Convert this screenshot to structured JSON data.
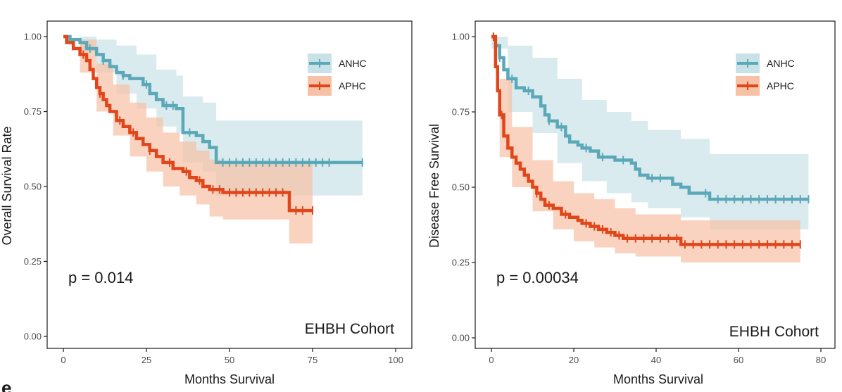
{
  "colors": {
    "anhc": "#5ba8b8",
    "aphc": "#e0461a",
    "anhc_band": "#c9e2e7",
    "aphc_band": "#f6c1a5"
  },
  "panel_letter": "e",
  "chart_data": [
    {
      "type": "line",
      "subtype": "kaplan-meier",
      "title": "",
      "xlabel": "Months Survival",
      "ylabel": "Overall Survival Rate",
      "xlim": [
        0,
        100
      ],
      "ylim": [
        0,
        1
      ],
      "xticks": [
        0,
        25,
        50,
        75,
        100
      ],
      "yticks": [
        0,
        0.25,
        0.5,
        0.75,
        1.0
      ],
      "xtick_labels": [
        "0",
        "25",
        "50",
        "75",
        "100"
      ],
      "ytick_labels": [
        "0.00",
        "0.25",
        "0.50",
        "0.75",
        "1.00"
      ],
      "grid": false,
      "legend_position": "top-right",
      "pvalue": "p = 0.014",
      "cohort_label": "EHBH Cohort",
      "series": [
        {
          "name": "ANHC",
          "color_key": "anhc",
          "steps": [
            [
              0,
              1.0
            ],
            [
              2,
              0.99
            ],
            [
              5,
              0.98
            ],
            [
              7,
              0.96
            ],
            [
              10,
              0.94
            ],
            [
              12,
              0.92
            ],
            [
              14,
              0.9
            ],
            [
              16,
              0.88
            ],
            [
              18,
              0.87
            ],
            [
              20,
              0.86
            ],
            [
              24,
              0.84
            ],
            [
              26,
              0.81
            ],
            [
              28,
              0.79
            ],
            [
              30,
              0.77
            ],
            [
              34,
              0.76
            ],
            [
              36,
              0.68
            ],
            [
              40,
              0.67
            ],
            [
              42,
              0.65
            ],
            [
              44,
              0.63
            ],
            [
              46,
              0.58
            ],
            [
              90,
              0.58
            ]
          ],
          "upper": [
            [
              0,
              1.0
            ],
            [
              5,
              1.0
            ],
            [
              10,
              0.99
            ],
            [
              16,
              0.97
            ],
            [
              22,
              0.94
            ],
            [
              28,
              0.89
            ],
            [
              34,
              0.87
            ],
            [
              36,
              0.8
            ],
            [
              42,
              0.78
            ],
            [
              46,
              0.72
            ],
            [
              90,
              0.72
            ]
          ],
          "lower": [
            [
              0,
              1.0
            ],
            [
              5,
              0.95
            ],
            [
              10,
              0.88
            ],
            [
              16,
              0.81
            ],
            [
              22,
              0.76
            ],
            [
              28,
              0.7
            ],
            [
              34,
              0.68
            ],
            [
              36,
              0.58
            ],
            [
              42,
              0.55
            ],
            [
              46,
              0.47
            ],
            [
              90,
              0.47
            ]
          ],
          "censor_x": [
            8,
            12,
            18,
            25,
            31,
            33,
            38,
            48,
            50,
            52,
            54,
            56,
            58,
            60,
            62,
            64,
            66,
            68,
            70,
            72,
            74,
            76,
            78,
            80,
            90
          ]
        },
        {
          "name": "APHC",
          "color_key": "aphc",
          "steps": [
            [
              0,
              1.0
            ],
            [
              1,
              0.98
            ],
            [
              3,
              0.96
            ],
            [
              5,
              0.94
            ],
            [
              7,
              0.92
            ],
            [
              8,
              0.89
            ],
            [
              9,
              0.86
            ],
            [
              10,
              0.83
            ],
            [
              11,
              0.81
            ],
            [
              12,
              0.79
            ],
            [
              13,
              0.77
            ],
            [
              14,
              0.75
            ],
            [
              16,
              0.72
            ],
            [
              18,
              0.7
            ],
            [
              20,
              0.68
            ],
            [
              22,
              0.66
            ],
            [
              24,
              0.64
            ],
            [
              26,
              0.62
            ],
            [
              28,
              0.6
            ],
            [
              30,
              0.58
            ],
            [
              33,
              0.56
            ],
            [
              36,
              0.55
            ],
            [
              38,
              0.53
            ],
            [
              40,
              0.52
            ],
            [
              42,
              0.5
            ],
            [
              44,
              0.49
            ],
            [
              48,
              0.48
            ],
            [
              68,
              0.48
            ],
            [
              68,
              0.42
            ],
            [
              75,
              0.42
            ]
          ],
          "upper": [
            [
              0,
              1.0
            ],
            [
              5,
              0.99
            ],
            [
              10,
              0.91
            ],
            [
              15,
              0.84
            ],
            [
              20,
              0.78
            ],
            [
              25,
              0.73
            ],
            [
              30,
              0.68
            ],
            [
              35,
              0.65
            ],
            [
              40,
              0.62
            ],
            [
              44,
              0.59
            ],
            [
              48,
              0.58
            ],
            [
              68,
              0.58
            ],
            [
              75,
              0.58
            ]
          ],
          "lower": [
            [
              0,
              1.0
            ],
            [
              5,
              0.88
            ],
            [
              10,
              0.75
            ],
            [
              15,
              0.67
            ],
            [
              20,
              0.6
            ],
            [
              25,
              0.55
            ],
            [
              30,
              0.5
            ],
            [
              35,
              0.47
            ],
            [
              40,
              0.44
            ],
            [
              44,
              0.4
            ],
            [
              48,
              0.39
            ],
            [
              68,
              0.39
            ],
            [
              68,
              0.31
            ],
            [
              75,
              0.31
            ]
          ],
          "censor_x": [
            6,
            11,
            17,
            21,
            26,
            32,
            37,
            41,
            45,
            47,
            50,
            52,
            54,
            56,
            58,
            60,
            62,
            64,
            66,
            70,
            72,
            75
          ]
        }
      ]
    },
    {
      "type": "line",
      "subtype": "kaplan-meier",
      "title": "",
      "xlabel": "Months Survival",
      "ylabel": "Disease Free Survival",
      "xlim": [
        0,
        80
      ],
      "ylim": [
        0,
        1
      ],
      "xticks": [
        0,
        20,
        40,
        60,
        80
      ],
      "yticks": [
        0,
        0.25,
        0.5,
        0.75,
        1.0
      ],
      "xtick_labels": [
        "0",
        "20",
        "40",
        "60",
        "80"
      ],
      "ytick_labels": [
        "0.00",
        "0.25",
        "0.50",
        "0.75",
        "1.00"
      ],
      "grid": false,
      "legend_position": "top-right",
      "pvalue": "p = 0.00034",
      "cohort_label": "EHBH Cohort",
      "series": [
        {
          "name": "ANHC",
          "color_key": "anhc",
          "steps": [
            [
              0,
              1.0
            ],
            [
              1,
              0.97
            ],
            [
              2,
              0.93
            ],
            [
              3,
              0.89
            ],
            [
              4,
              0.86
            ],
            [
              6,
              0.83
            ],
            [
              8,
              0.82
            ],
            [
              10,
              0.8
            ],
            [
              12,
              0.77
            ],
            [
              13,
              0.74
            ],
            [
              14,
              0.72
            ],
            [
              16,
              0.7
            ],
            [
              18,
              0.67
            ],
            [
              19,
              0.65
            ],
            [
              21,
              0.64
            ],
            [
              22,
              0.63
            ],
            [
              24,
              0.62
            ],
            [
              26,
              0.6
            ],
            [
              30,
              0.59
            ],
            [
              34,
              0.58
            ],
            [
              35,
              0.56
            ],
            [
              36,
              0.54
            ],
            [
              38,
              0.53
            ],
            [
              44,
              0.51
            ],
            [
              46,
              0.5
            ],
            [
              48,
              0.48
            ],
            [
              53,
              0.46
            ],
            [
              77,
              0.46
            ]
          ],
          "upper": [
            [
              0,
              1.0
            ],
            [
              4,
              0.97
            ],
            [
              10,
              0.93
            ],
            [
              16,
              0.86
            ],
            [
              22,
              0.79
            ],
            [
              28,
              0.75
            ],
            [
              34,
              0.72
            ],
            [
              38,
              0.69
            ],
            [
              46,
              0.66
            ],
            [
              53,
              0.61
            ],
            [
              77,
              0.61
            ]
          ],
          "lower": [
            [
              0,
              0.96
            ],
            [
              4,
              0.75
            ],
            [
              10,
              0.68
            ],
            [
              16,
              0.58
            ],
            [
              22,
              0.52
            ],
            [
              28,
              0.48
            ],
            [
              34,
              0.45
            ],
            [
              38,
              0.43
            ],
            [
              46,
              0.4
            ],
            [
              53,
              0.36
            ],
            [
              77,
              0.36
            ]
          ],
          "censor_x": [
            2,
            5,
            9,
            14,
            17,
            23,
            27,
            32,
            39,
            41,
            52,
            55,
            57,
            59,
            61,
            63,
            65,
            67,
            69,
            71,
            73,
            75,
            77
          ]
        },
        {
          "name": "APHC",
          "color_key": "aphc",
          "steps": [
            [
              0,
              1.0
            ],
            [
              1,
              0.9
            ],
            [
              1.5,
              0.82
            ],
            [
              2,
              0.74
            ],
            [
              3,
              0.67
            ],
            [
              4,
              0.63
            ],
            [
              5,
              0.6
            ],
            [
              6,
              0.58
            ],
            [
              7,
              0.56
            ],
            [
              8,
              0.54
            ],
            [
              9,
              0.52
            ],
            [
              10,
              0.5
            ],
            [
              11,
              0.48
            ],
            [
              12,
              0.46
            ],
            [
              13,
              0.44
            ],
            [
              15,
              0.43
            ],
            [
              17,
              0.41
            ],
            [
              19,
              0.4
            ],
            [
              21,
              0.39
            ],
            [
              22,
              0.38
            ],
            [
              24,
              0.37
            ],
            [
              26,
              0.36
            ],
            [
              28,
              0.35
            ],
            [
              30,
              0.34
            ],
            [
              32,
              0.33
            ],
            [
              36,
              0.33
            ],
            [
              46,
              0.31
            ],
            [
              75,
              0.31
            ]
          ],
          "upper": [
            [
              0,
              1.0
            ],
            [
              2,
              0.86
            ],
            [
              5,
              0.7
            ],
            [
              10,
              0.59
            ],
            [
              15,
              0.52
            ],
            [
              20,
              0.48
            ],
            [
              25,
              0.46
            ],
            [
              30,
              0.43
            ],
            [
              35,
              0.41
            ],
            [
              46,
              0.39
            ],
            [
              75,
              0.39
            ]
          ],
          "lower": [
            [
              0,
              1.0
            ],
            [
              2,
              0.6
            ],
            [
              5,
              0.5
            ],
            [
              10,
              0.42
            ],
            [
              15,
              0.36
            ],
            [
              20,
              0.32
            ],
            [
              25,
              0.3
            ],
            [
              30,
              0.28
            ],
            [
              35,
              0.27
            ],
            [
              46,
              0.25
            ],
            [
              75,
              0.25
            ]
          ],
          "censor_x": [
            0.5,
            2.5,
            11,
            14,
            18,
            23,
            25,
            27,
            29,
            31,
            33,
            35,
            37,
            39,
            41,
            43,
            45,
            47,
            49,
            51,
            53,
            55,
            57,
            59,
            61,
            63,
            65,
            67,
            69,
            71,
            73,
            75
          ]
        }
      ]
    }
  ]
}
